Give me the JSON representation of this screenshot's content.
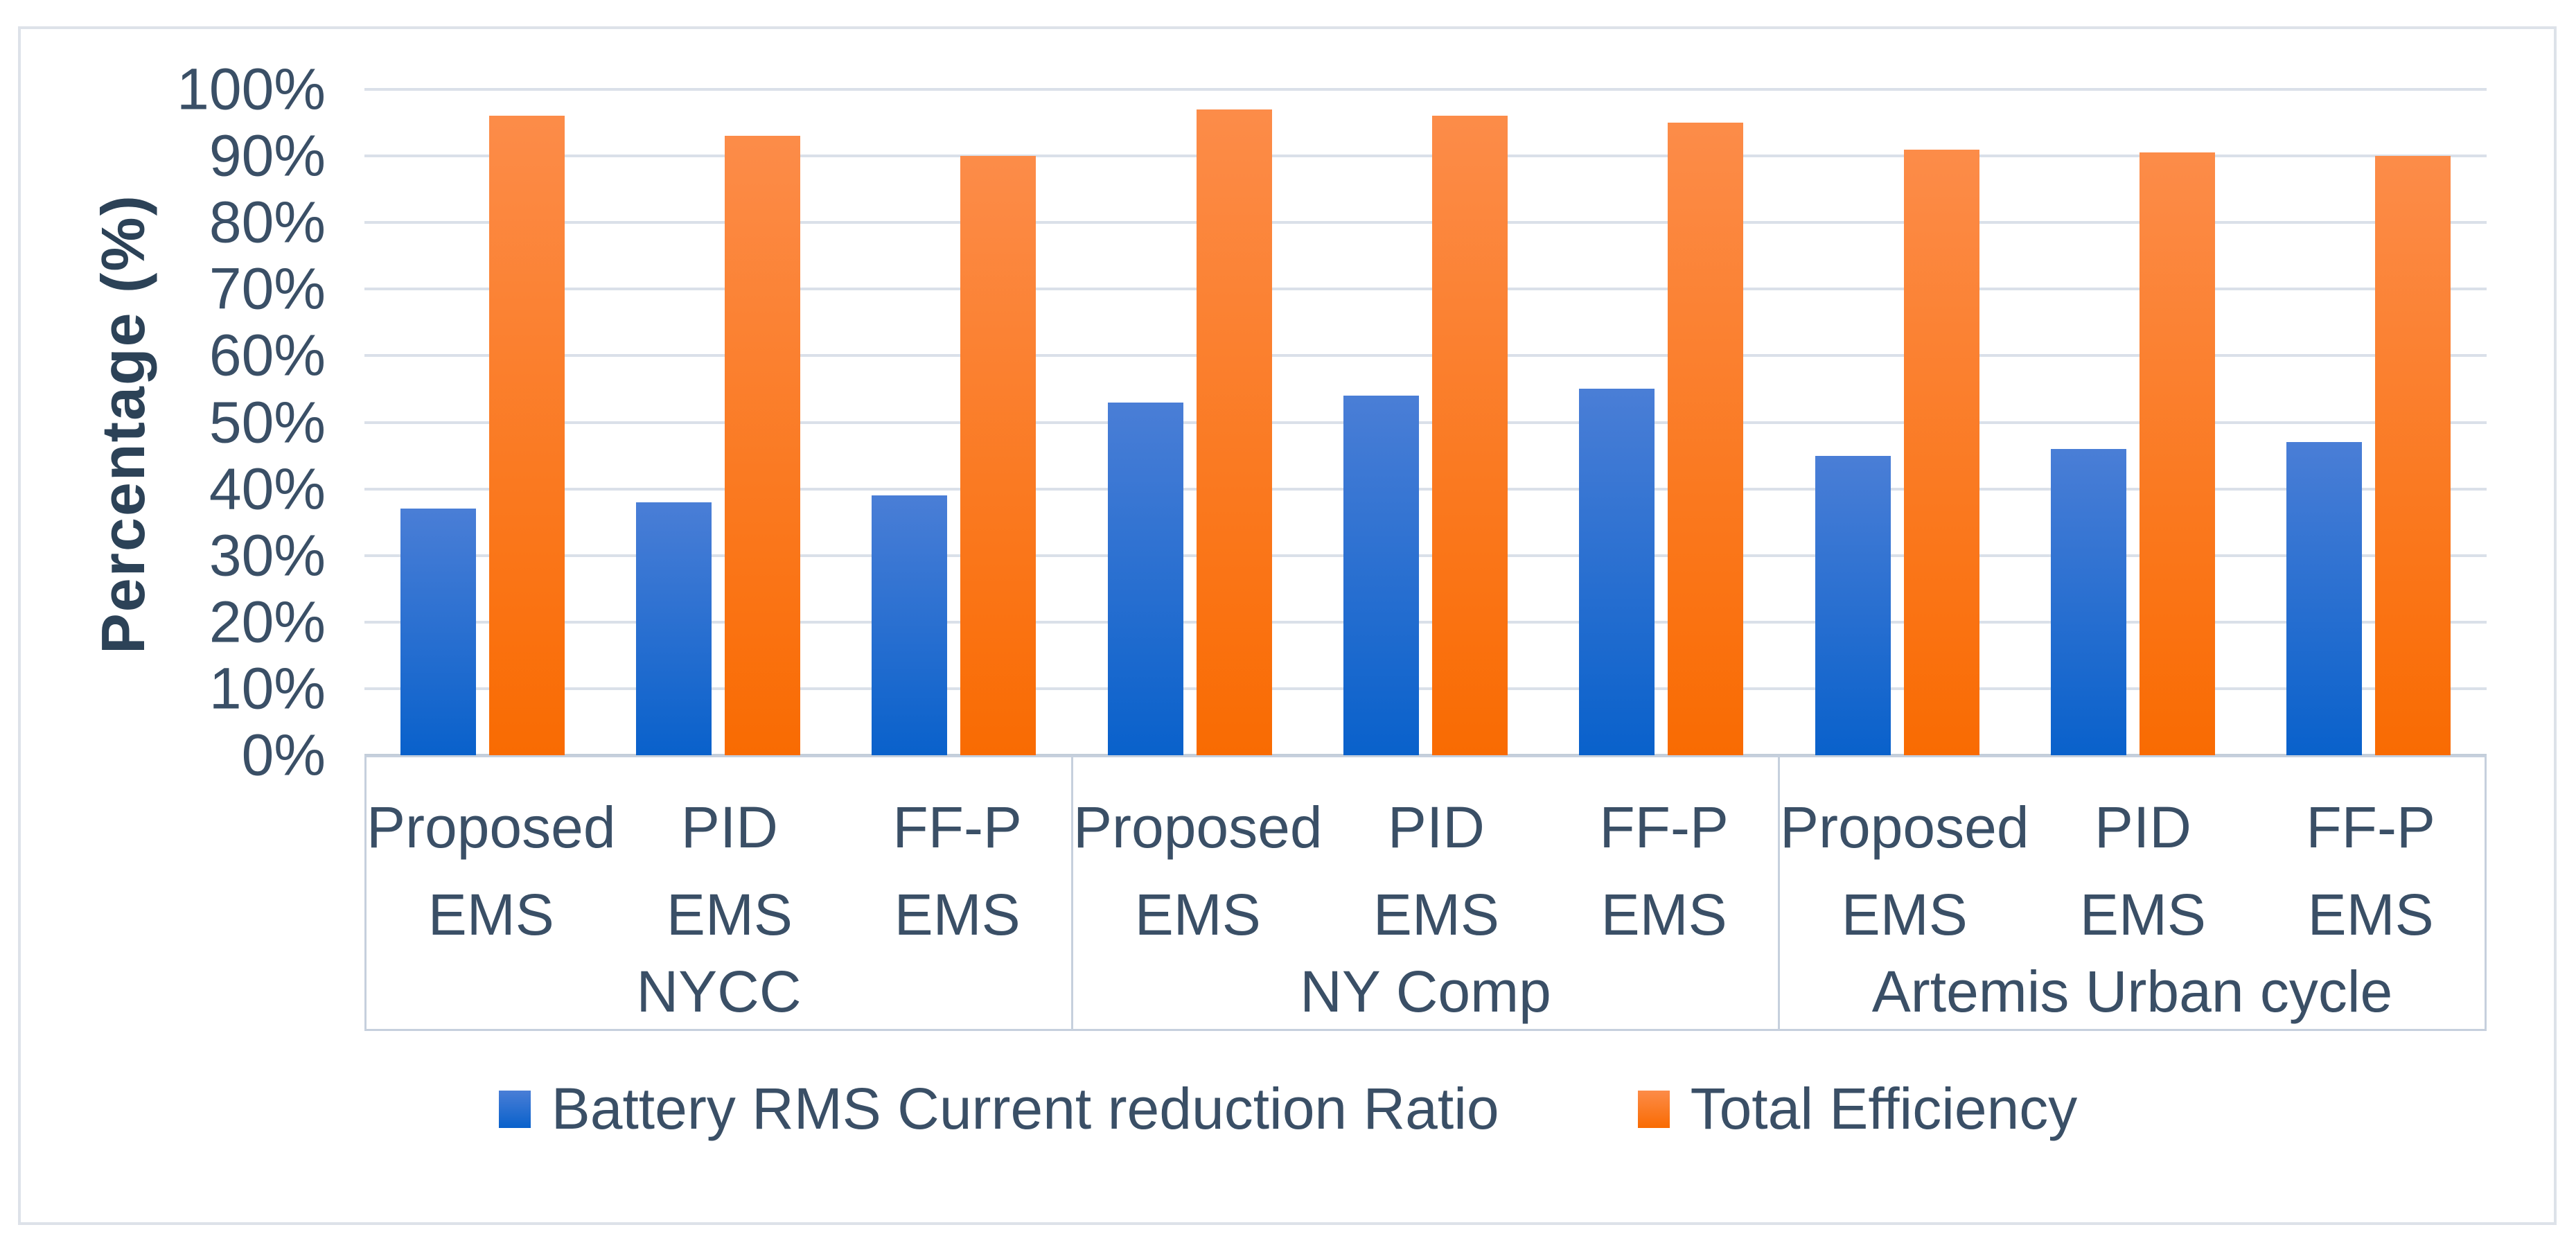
{
  "chart_data": {
    "type": "bar",
    "title": "",
    "xlabel": "",
    "ylabel": "Percentage (%)",
    "ylim": [
      0,
      100
    ],
    "grid": true,
    "legend_position": "bottom",
    "y_ticks": [
      "100%",
      "90%",
      "80%",
      "70%",
      "60%",
      "50%",
      "40%",
      "30%",
      "20%",
      "10%",
      "0%"
    ],
    "group_labels": [
      "NYCC",
      "NY Comp",
      "Artemis Urban cycle"
    ],
    "categories_per_group": [
      "Proposed EMS",
      "PID EMS",
      "FF-P EMS"
    ],
    "series": [
      {
        "name": "Battery RMS Current reduction Ratio",
        "color_top": "#4A7ED6",
        "color_bottom": "#0961CB",
        "values": [
          37,
          38,
          39,
          53,
          54,
          55,
          45,
          46,
          47
        ]
      },
      {
        "name": "Total Efficiency",
        "color_top": "#FC8C49",
        "color_bottom": "#F96B02",
        "values": [
          96,
          93,
          90,
          97,
          96,
          95,
          91,
          90.5,
          90
        ]
      }
    ]
  },
  "colors": {
    "text": "#3A4F66",
    "axis_title": "#2C4257",
    "gridline": "#DAE0E9",
    "axis_line": "#C3CDD9",
    "box_border": "#C6D0DD",
    "frame_border": "#DDE2E9"
  }
}
